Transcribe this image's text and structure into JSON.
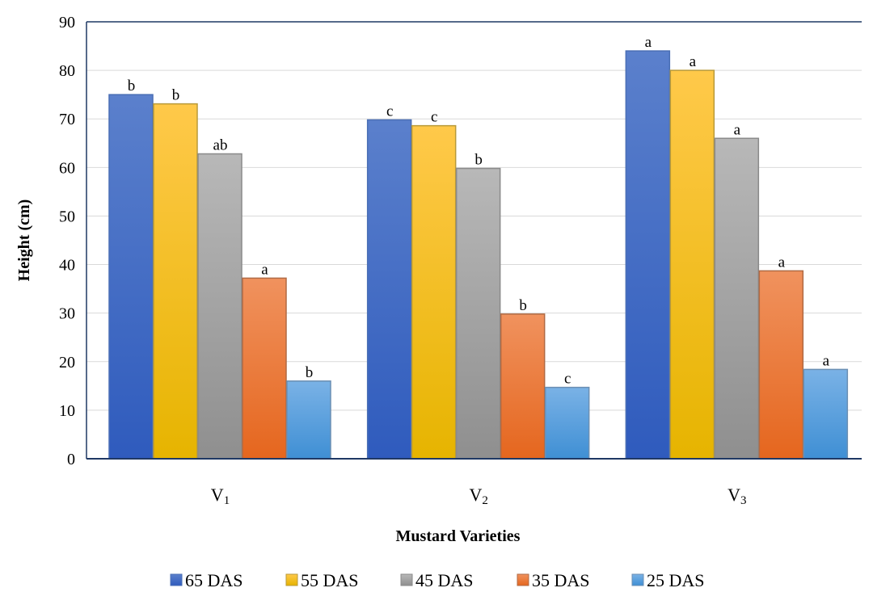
{
  "chart_data": {
    "type": "bar",
    "title": "",
    "xlabel": "Mustard Varieties",
    "ylabel": "Height (cm)",
    "ylim": [
      0,
      90
    ],
    "yticks": [
      0,
      10,
      20,
      30,
      40,
      50,
      60,
      70,
      80,
      90
    ],
    "grid": true,
    "legend_position": "bottom",
    "categories": [
      {
        "base": "V",
        "sub": "1"
      },
      {
        "base": "V",
        "sub": "2"
      },
      {
        "base": "V",
        "sub": "3"
      }
    ],
    "series": [
      {
        "name": "65 DAS",
        "color_top": "#5b80cc",
        "color_bottom": "#2f5bbd",
        "border": "#4a6fb5",
        "values": [
          75,
          69.8,
          84
        ],
        "labels": [
          "b",
          "c",
          "a"
        ]
      },
      {
        "name": "55 DAS",
        "color_top": "#ffc94a",
        "color_bottom": "#e6b400",
        "border": "#b89a3a",
        "values": [
          73.1,
          68.6,
          80
        ],
        "labels": [
          "b",
          "c",
          "a"
        ]
      },
      {
        "name": "45 DAS",
        "color_top": "#b8b8b8",
        "color_bottom": "#8f8f8f",
        "border": "#8a8a8a",
        "values": [
          62.8,
          59.8,
          66
        ],
        "labels": [
          "ab",
          "b",
          "a"
        ]
      },
      {
        "name": "35 DAS",
        "color_top": "#f0925e",
        "color_bottom": "#e5661e",
        "border": "#b06a44",
        "values": [
          37.2,
          29.8,
          38.7
        ],
        "labels": [
          "a",
          "b",
          "a"
        ]
      },
      {
        "name": "25 DAS",
        "color_top": "#7ab2e6",
        "color_bottom": "#3f8fd4",
        "border": "#6b8fb3",
        "values": [
          16,
          14.7,
          18.4
        ],
        "labels": [
          "b",
          "c",
          "a"
        ]
      }
    ]
  }
}
